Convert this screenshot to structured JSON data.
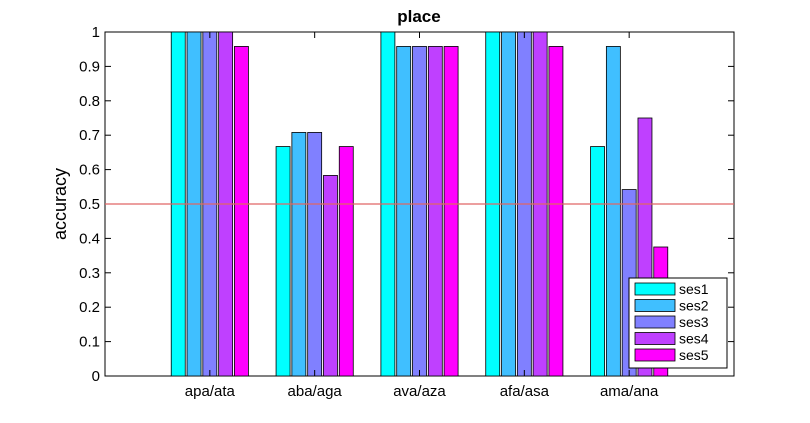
{
  "chart_data": {
    "type": "bar",
    "title": "place",
    "xlabel": "",
    "ylabel": "accuracy",
    "categories": [
      "apa/ata",
      "aba/aga",
      "ava/aza",
      "afa/asa",
      "ama/ana"
    ],
    "series": [
      {
        "name": "ses1",
        "color": "#00ffff",
        "values": [
          1.0,
          0.667,
          1.0,
          1.0,
          0.667
        ]
      },
      {
        "name": "ses2",
        "color": "#40bfff",
        "values": [
          1.0,
          0.708,
          0.958,
          1.0,
          0.958
        ]
      },
      {
        "name": "ses3",
        "color": "#8080ff",
        "values": [
          1.0,
          0.708,
          0.958,
          1.0,
          0.542
        ]
      },
      {
        "name": "ses4",
        "color": "#bf40ff",
        "values": [
          1.0,
          0.583,
          0.958,
          1.0,
          0.75
        ]
      },
      {
        "name": "ses5",
        "color": "#ff00ff",
        "values": [
          0.958,
          0.667,
          0.958,
          0.958,
          0.375
        ]
      }
    ],
    "ylim": [
      0,
      1
    ],
    "yticks": [
      "0",
      "0.1",
      "0.2",
      "0.3",
      "0.4",
      "0.5",
      "0.6",
      "0.7",
      "0.8",
      "0.9",
      "1"
    ],
    "reference_line": {
      "value": 0.5,
      "color": "#e06666"
    },
    "grid": false,
    "legend_position": "bottom-right"
  }
}
